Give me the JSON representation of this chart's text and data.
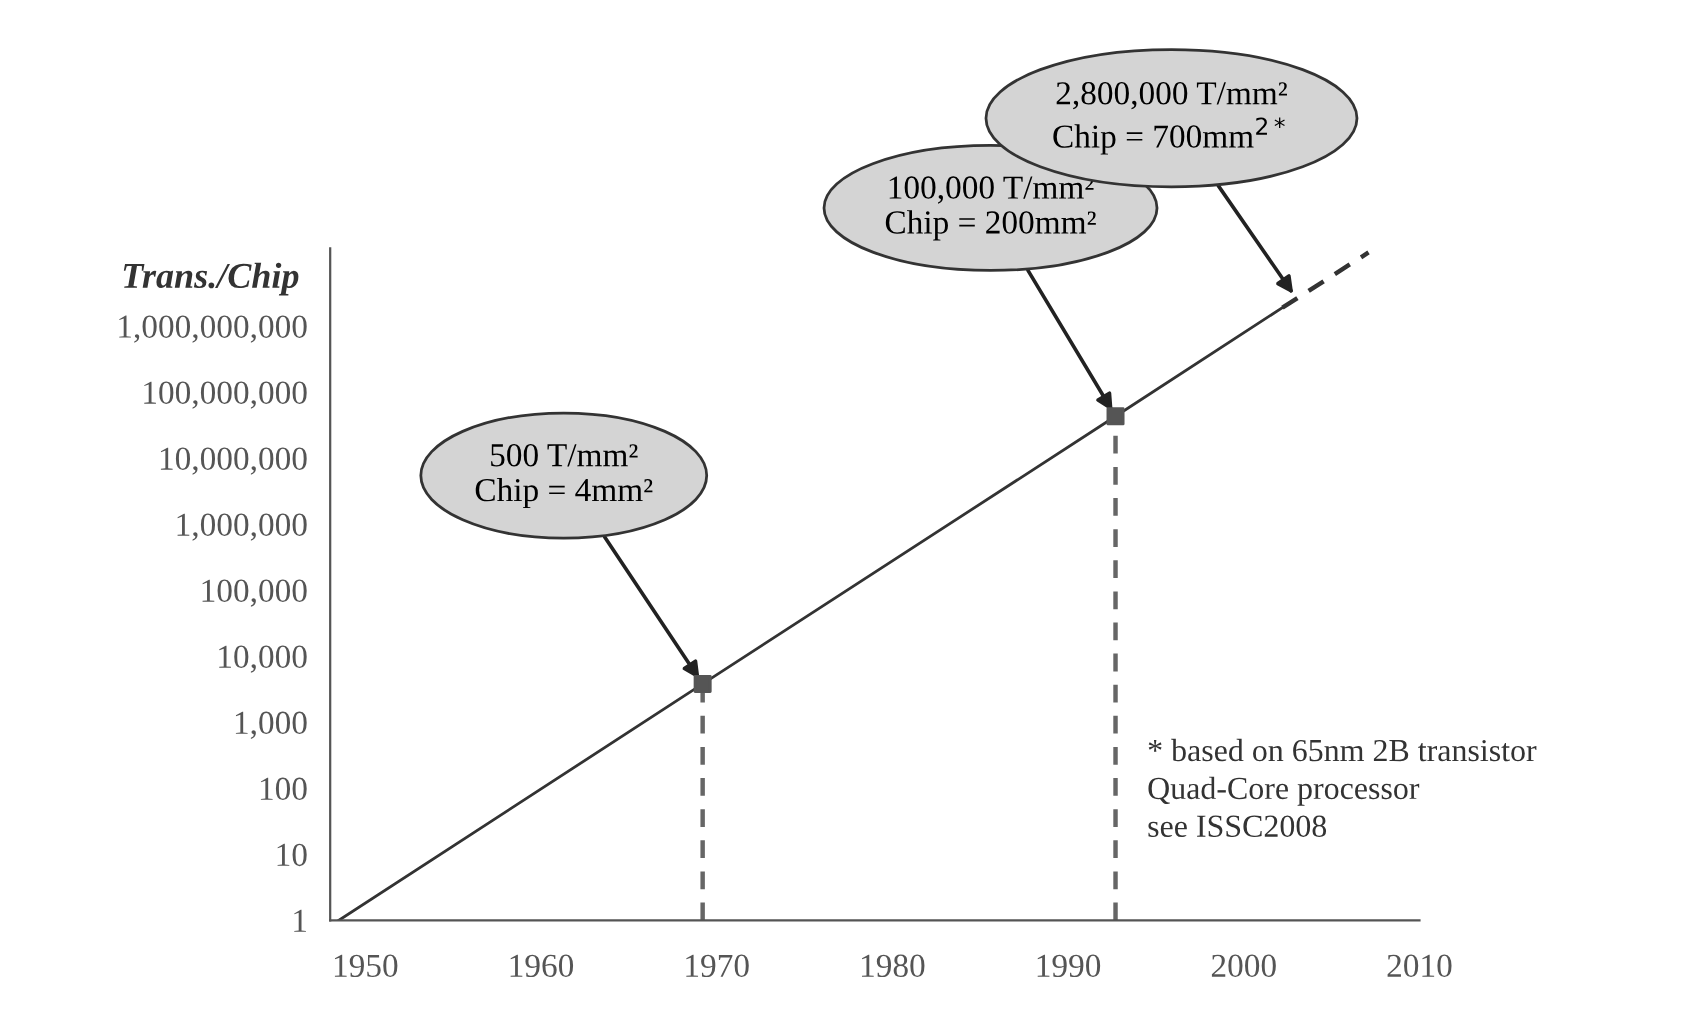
{
  "chart_data": {
    "type": "line",
    "ylabel": "Trans./Chip",
    "log": "y",
    "grid": false,
    "legend": false,
    "xlim": [
      1948,
      2010
    ],
    "xticks": [
      1950,
      1960,
      1970,
      1980,
      1990,
      2000,
      2010
    ],
    "ylim": [
      1,
      15000000000
    ],
    "yticks": [
      1,
      10,
      100,
      {
        "value": 1000,
        "label": "1,000"
      },
      {
        "value": 10000,
        "label": "10,000"
      },
      {
        "value": 100000,
        "label": "100,000"
      },
      {
        "value": 1000000,
        "label": "1,000,000"
      },
      {
        "value": 10000000,
        "label": "10,000,000"
      },
      {
        "value": 100000000,
        "label": "100,000,000"
      },
      {
        "value": 1000000000,
        "label": "1,000,000,000"
      }
    ],
    "series": [
      {
        "color": "#333333",
        "line_style": "solid",
        "x": [
          1948.5,
          1969.2,
          1992.7,
          2002.2
        ],
        "values": [
          1,
          3800,
          43000000,
          1900000000
        ]
      },
      {
        "color": "#333333",
        "line_style": "dashed",
        "x": [
          2002.2,
          2007.1
        ],
        "values": [
          1900000000,
          13000000000
        ]
      },
      {
        "color": "#666666",
        "line_style": "dashed",
        "x": [
          1969.2,
          1969.2
        ],
        "values": [
          1,
          3800
        ]
      },
      {
        "color": "#666666",
        "line_style": "dashed",
        "x": [
          1992.7,
          1992.7
        ],
        "values": [
          1,
          43000000
        ]
      },
      {
        "type": "scatter",
        "color": "#555555",
        "marker": "square",
        "x": [
          1969.2,
          1992.7
        ],
        "values": [
          3800,
          43000000
        ]
      }
    ],
    "annotations": [
      {
        "text": "500 T/mm²\nChip = 4mm²",
        "x": 1969.2,
        "y": 3800
      },
      {
        "text": "100,000 T/mm²\nChip = 200mm²",
        "x": 1992.7,
        "y": 43000000
      },
      {
        "text": "2,800,000 T/mm²\nChip = 700mm$^{2*}$",
        "x": 2003.0,
        "y": 2600000000
      },
      "* based on 65nm 2B transistor\nQuad-Core processor\nsee ISSC2008"
    ]
  }
}
